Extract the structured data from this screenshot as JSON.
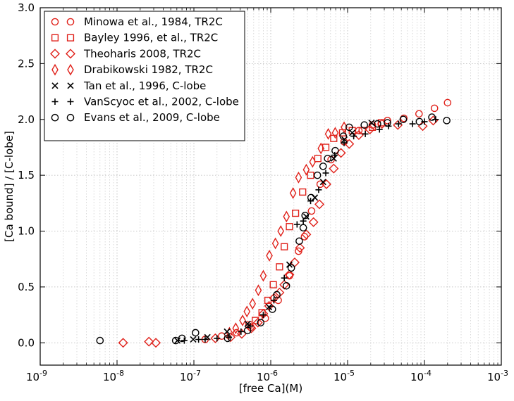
{
  "chart_data": {
    "type": "scatter",
    "xscale": "log",
    "xlim": [
      1e-09,
      0.001
    ],
    "ylim": [
      -0.2,
      3.0
    ],
    "xlabel": "[free Ca](M)",
    "ylabel": "[Ca bound] / [C-lobe]",
    "grid": true,
    "legend_position": "top-left",
    "x_ticks": [
      {
        "value": 1e-09,
        "base": "10",
        "exp": "-9"
      },
      {
        "value": 1e-08,
        "base": "10",
        "exp": "-8"
      },
      {
        "value": 1e-07,
        "base": "10",
        "exp": "-7"
      },
      {
        "value": 1e-06,
        "base": "10",
        "exp": "-6"
      },
      {
        "value": 1e-05,
        "base": "10",
        "exp": "-5"
      },
      {
        "value": 0.0001,
        "base": "10",
        "exp": "-4"
      },
      {
        "value": 0.001,
        "base": "10",
        "exp": "-3"
      }
    ],
    "y_ticks": [
      {
        "value": 0.0,
        "label": "0.0"
      },
      {
        "value": 0.5,
        "label": "0.5"
      },
      {
        "value": 1.0,
        "label": "1.0"
      },
      {
        "value": 1.5,
        "label": "1.5"
      },
      {
        "value": 2.0,
        "label": "2.0"
      },
      {
        "value": 2.5,
        "label": "2.5"
      },
      {
        "value": 3.0,
        "label": "3.0"
      }
    ],
    "series": [
      {
        "name": "Minowa et al., 1984, TR2C",
        "marker": "circle",
        "color": "#e0211a",
        "points": [
          [
            1.4e-07,
            0.03
          ],
          [
            2.3e-07,
            0.06
          ],
          [
            3.6e-07,
            0.09
          ],
          [
            5.5e-07,
            0.14
          ],
          [
            8.5e-07,
            0.22
          ],
          [
            1.25e-06,
            0.38
          ],
          [
            1.75e-06,
            0.6
          ],
          [
            2.3e-06,
            0.82
          ],
          [
            2.75e-06,
            0.95
          ],
          [
            3.4e-06,
            1.18
          ],
          [
            4.4e-06,
            1.42
          ],
          [
            6.1e-06,
            1.64
          ],
          [
            9e-06,
            1.8
          ],
          [
            1.4e-05,
            1.9
          ],
          [
            2.1e-05,
            1.95
          ],
          [
            3.3e-05,
            1.99
          ],
          [
            5.4e-05,
            2.01
          ],
          [
            8.5e-05,
            2.05
          ],
          [
            0.000135,
            2.1
          ],
          [
            0.0002,
            2.15
          ]
        ]
      },
      {
        "name": "Bayley 1996, et al., TR2C",
        "marker": "square",
        "color": "#e0211a",
        "points": [
          [
            5.2e-07,
            0.16
          ],
          [
            6.3e-07,
            0.2
          ],
          [
            7.7e-07,
            0.27
          ],
          [
            9.2e-07,
            0.38
          ],
          [
            1.08e-06,
            0.52
          ],
          [
            1.3e-06,
            0.68
          ],
          [
            1.5e-06,
            0.86
          ],
          [
            1.75e-06,
            1.04
          ],
          [
            2.1e-06,
            1.16
          ],
          [
            2.6e-06,
            1.35
          ],
          [
            3.3e-06,
            1.5
          ],
          [
            4.1e-06,
            1.65
          ],
          [
            5.2e-06,
            1.75
          ],
          [
            6.6e-06,
            1.83
          ],
          [
            8.6e-06,
            1.88
          ],
          [
            1.15e-05,
            1.9
          ],
          [
            1.55e-05,
            1.9
          ],
          [
            2.1e-05,
            1.93
          ],
          [
            2.75e-05,
            1.97
          ]
        ]
      },
      {
        "name": "Theoharis 2008, TR2C",
        "marker": "diamond",
        "color": "#e0211a",
        "points": [
          [
            1.2e-08,
            0.0
          ],
          [
            2.6e-08,
            0.01
          ],
          [
            3.2e-08,
            0.0
          ],
          [
            1.9e-07,
            0.04
          ],
          [
            3e-07,
            0.05
          ],
          [
            4.2e-07,
            0.08
          ],
          [
            5.6e-07,
            0.13
          ],
          [
            6.8e-07,
            0.18
          ],
          [
            8e-07,
            0.26
          ],
          [
            9.5e-07,
            0.33
          ],
          [
            1.1e-06,
            0.4
          ],
          [
            1.3e-06,
            0.45
          ],
          [
            1.5e-06,
            0.52
          ],
          [
            1.75e-06,
            0.61
          ],
          [
            2.05e-06,
            0.72
          ],
          [
            2.4e-06,
            0.85
          ],
          [
            2.9e-06,
            0.97
          ],
          [
            3.6e-06,
            1.08
          ],
          [
            4.3e-06,
            1.24
          ],
          [
            5.3e-06,
            1.42
          ],
          [
            6.6e-06,
            1.56
          ],
          [
            8.2e-06,
            1.7
          ],
          [
            1.05e-05,
            1.78
          ],
          [
            1.4e-05,
            1.86
          ],
          [
            1.95e-05,
            1.91
          ],
          [
            2.8e-05,
            1.96
          ],
          [
            4.5e-05,
            1.95
          ],
          [
            9.5e-05,
            1.94
          ],
          [
            0.00013,
            1.99
          ]
        ]
      },
      {
        "name": "Drabikowski 1982, TR2C",
        "marker": "thin_diamond",
        "color": "#e0211a",
        "points": [
          [
            2.9e-07,
            0.09
          ],
          [
            3.5e-07,
            0.13
          ],
          [
            4.3e-07,
            0.2
          ],
          [
            4.9e-07,
            0.28
          ],
          [
            5.8e-07,
            0.35
          ],
          [
            6.9e-07,
            0.47
          ],
          [
            8e-07,
            0.6
          ],
          [
            9.6e-07,
            0.78
          ],
          [
            1.15e-06,
            0.89
          ],
          [
            1.35e-06,
            1.0
          ],
          [
            1.6e-06,
            1.13
          ],
          [
            1.95e-06,
            1.34
          ],
          [
            2.3e-06,
            1.48
          ],
          [
            2.9e-06,
            1.55
          ],
          [
            3.5e-06,
            1.62
          ],
          [
            4.5e-06,
            1.74
          ],
          [
            5.6e-06,
            1.87
          ],
          [
            6.9e-06,
            1.88
          ],
          [
            9e-06,
            1.93
          ]
        ]
      },
      {
        "name": "Tan et al., 1996, C-lobe",
        "marker": "x",
        "color": "#000000",
        "points": [
          [
            6.1e-08,
            0.02
          ],
          [
            9.8e-08,
            0.03
          ],
          [
            1.5e-07,
            0.05
          ],
          [
            2.7e-07,
            0.1
          ],
          [
            5e-07,
            0.17
          ],
          [
            9.5e-07,
            0.32
          ],
          [
            1.75e-06,
            0.7
          ],
          [
            2.9e-06,
            1.13
          ],
          [
            3.75e-06,
            1.3
          ],
          [
            4.8e-06,
            1.44
          ],
          [
            6.6e-06,
            1.65
          ],
          [
            9.1e-06,
            1.82
          ],
          [
            1.15e-05,
            1.88
          ],
          [
            2.05e-05,
            1.97
          ]
        ]
      },
      {
        "name": "VanScyoc et al., 2002, C-lobe",
        "marker": "plus",
        "color": "#000000",
        "points": [
          [
            7.5e-08,
            0.02
          ],
          [
            1.15e-07,
            0.03
          ],
          [
            1.4e-07,
            0.03
          ],
          [
            2e-07,
            0.04
          ],
          [
            2.85e-07,
            0.05
          ],
          [
            4.1e-07,
            0.1
          ],
          [
            5.4e-07,
            0.15
          ],
          [
            8e-07,
            0.25
          ],
          [
            1.1e-06,
            0.38
          ],
          [
            1.5e-06,
            0.58
          ],
          [
            2.2e-06,
            1.06
          ],
          [
            2.65e-06,
            1.09
          ],
          [
            3.3e-06,
            1.27
          ],
          [
            4.2e-06,
            1.37
          ],
          [
            5.2e-06,
            1.52
          ],
          [
            6.8e-06,
            1.68
          ],
          [
            9e-06,
            1.79
          ],
          [
            1.2e-05,
            1.85
          ],
          [
            1.7e-05,
            1.87
          ],
          [
            2.6e-05,
            1.91
          ],
          [
            3.4e-05,
            1.94
          ],
          [
            4.6e-05,
            1.96
          ],
          [
            7e-05,
            1.96
          ],
          [
            0.0001,
            1.98
          ],
          [
            0.00014,
            2.0
          ]
        ]
      },
      {
        "name": "Evans et al., 2009, C-lobe",
        "marker": "circle_open",
        "color": "#000000",
        "points": [
          [
            6e-09,
            0.02
          ],
          [
            5.8e-08,
            0.02
          ],
          [
            7e-08,
            0.04
          ],
          [
            1.05e-07,
            0.09
          ],
          [
            2.75e-07,
            0.04
          ],
          [
            5e-07,
            0.11
          ],
          [
            7.4e-07,
            0.18
          ],
          [
            1.05e-06,
            0.3
          ],
          [
            1.2e-06,
            0.43
          ],
          [
            1.6e-06,
            0.51
          ],
          [
            1.85e-06,
            0.67
          ],
          [
            2.35e-06,
            0.91
          ],
          [
            2.65e-06,
            1.03
          ],
          [
            2.8e-06,
            1.14
          ],
          [
            3.35e-06,
            1.3
          ],
          [
            4.05e-06,
            1.5
          ],
          [
            4.8e-06,
            1.58
          ],
          [
            5.5e-06,
            1.65
          ],
          [
            6.9e-06,
            1.72
          ],
          [
            8.8e-06,
            1.85
          ],
          [
            1.05e-05,
            1.93
          ],
          [
            1.65e-05,
            1.95
          ],
          [
            2.45e-05,
            1.96
          ],
          [
            3.3e-05,
            1.97
          ],
          [
            5.3e-05,
            2.0
          ],
          [
            8.6e-05,
            1.98
          ],
          [
            0.000125,
            2.02
          ],
          [
            0.000195,
            1.99
          ]
        ]
      }
    ]
  }
}
